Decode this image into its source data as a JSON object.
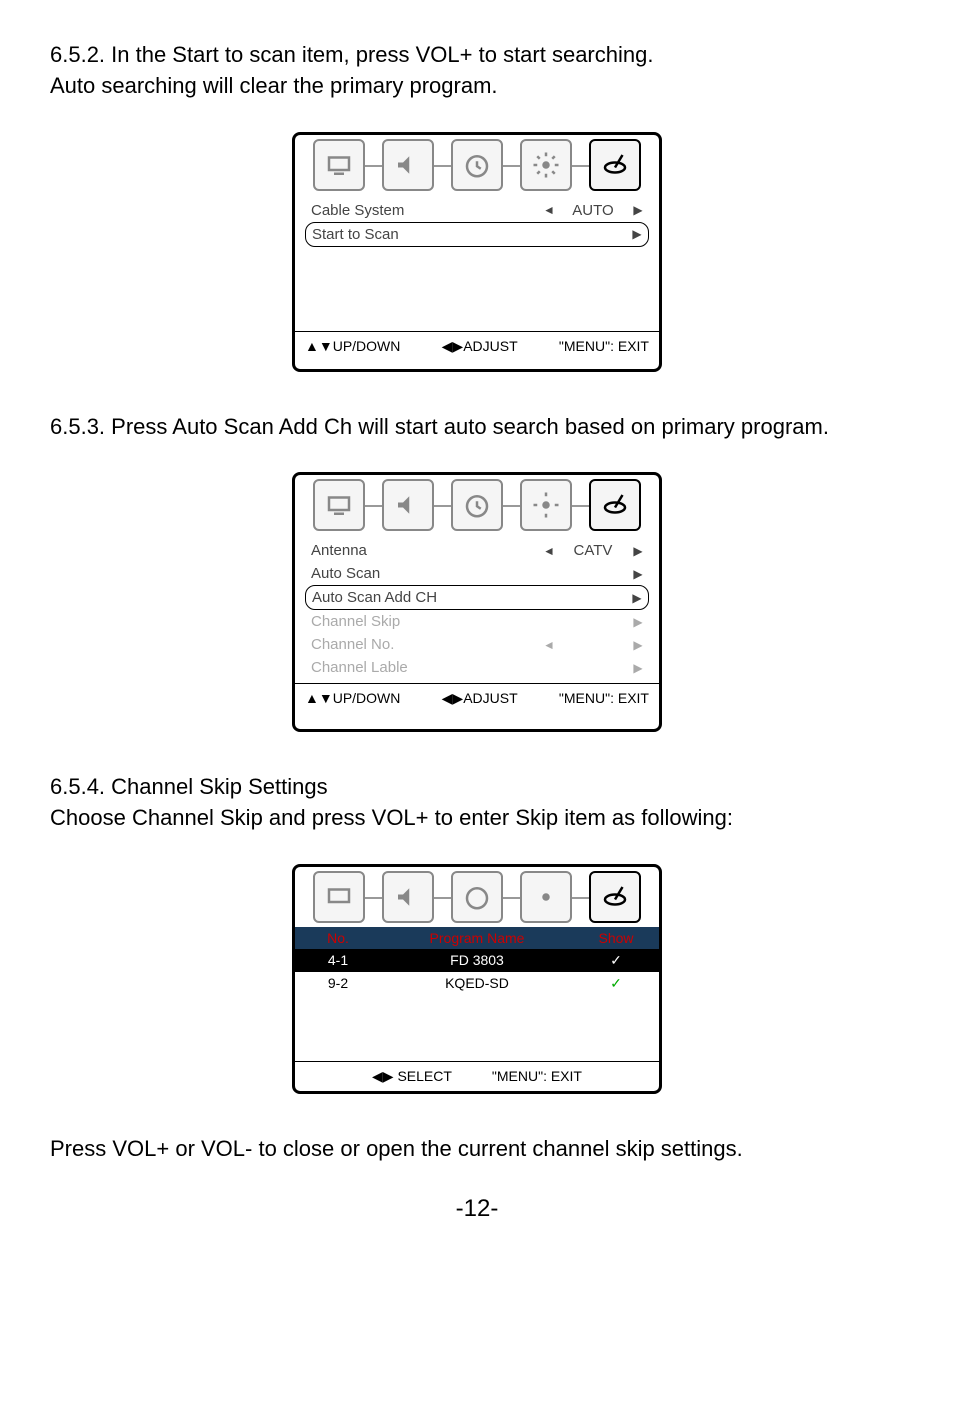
{
  "section652": {
    "text1": "6.5.2. In the Start to scan item, press VOL+ to start searching.",
    "text2": "Auto searching will clear the primary program."
  },
  "menu1": {
    "rows": [
      {
        "label": "Cable System",
        "value": "AUTO",
        "left": "◄",
        "right": "▶",
        "highlighted": false
      },
      {
        "label": "Start to Scan",
        "value": "",
        "left": "",
        "right": "▶",
        "highlighted": true
      }
    ],
    "footer": {
      "updown": "▲▼UP/DOWN",
      "adjust": "◀▶ADJUST",
      "exit": "\"MENU\": EXIT"
    }
  },
  "section653": {
    "text": "6.5.3. Press Auto Scan Add Ch will start auto search based on primary program."
  },
  "menu2": {
    "rows": [
      {
        "label": "Antenna",
        "value": "CATV",
        "left": "◄",
        "right": "▶",
        "highlighted": false,
        "disabled": false
      },
      {
        "label": "Auto Scan",
        "value": "",
        "left": "",
        "right": "▶",
        "highlighted": false,
        "disabled": false
      },
      {
        "label": "Auto Scan Add CH",
        "value": "",
        "left": "",
        "right": "▶",
        "highlighted": true,
        "disabled": false
      },
      {
        "label": "Channel Skip",
        "value": "",
        "left": "",
        "right": "▶",
        "highlighted": false,
        "disabled": true
      },
      {
        "label": "Channel No.",
        "value": "",
        "left": "◄",
        "right": "▶",
        "highlighted": false,
        "disabled": true
      },
      {
        "label": "Channel Lable",
        "value": "",
        "left": "",
        "right": "▶",
        "highlighted": false,
        "disabled": true
      }
    ],
    "footer": {
      "updown": "▲▼UP/DOWN",
      "adjust": "◀▶ADJUST",
      "exit": "\"MENU\": EXIT"
    }
  },
  "section654": {
    "title": "6.5.4. Channel Skip Settings",
    "text": "Choose Channel Skip and press VOL+ to enter Skip item as following:"
  },
  "menu3": {
    "header": {
      "no": "No.",
      "name": "Program Name",
      "show": "Show"
    },
    "rows": [
      {
        "no": "4-1",
        "name": "FD 3803",
        "show": "✓",
        "hl": true
      },
      {
        "no": "9-2",
        "name": "KQED-SD",
        "show": "✓",
        "hl": false
      }
    ],
    "footer": {
      "select": "◀▶ SELECT",
      "exit": "\"MENU\": EXIT"
    }
  },
  "footer_text": "Press VOL+ or VOL- to close or open the current channel skip settings.",
  "page_number": "-12-"
}
